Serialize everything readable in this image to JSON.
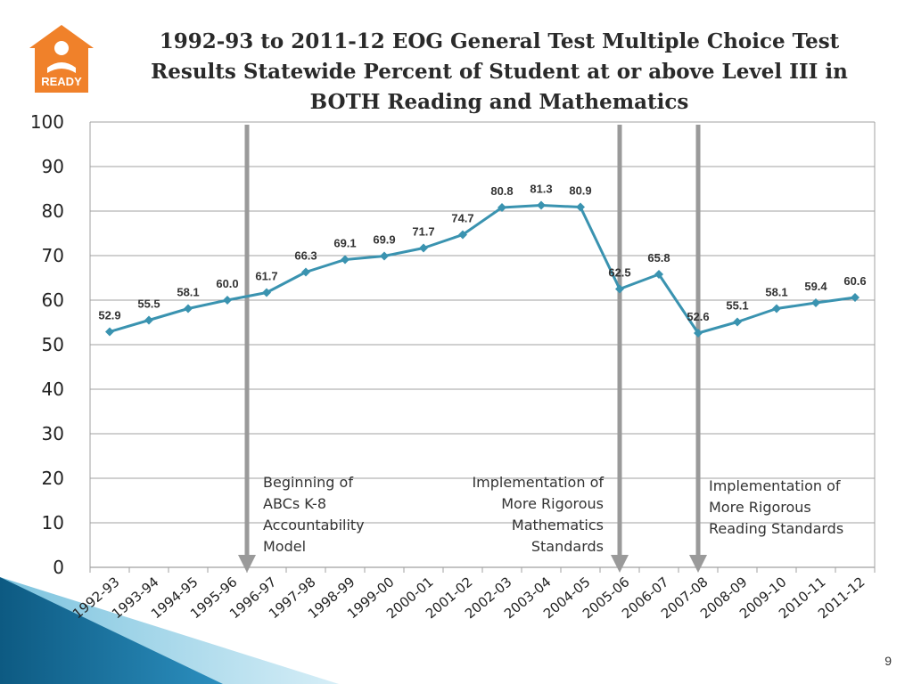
{
  "slide": {
    "title_lines": [
      "1992-93 to 2011-12 EOG General Test Multiple Choice Test",
      "Results Statewide Percent of Student at or above Level III in",
      "BOTH Reading and Mathematics"
    ],
    "logo_text": "READY",
    "page_number": "9",
    "colors": {
      "line": "#3a93b0",
      "marker": "#3a93b0",
      "grid": "#a0a0a0",
      "divider": "#9a9a9a",
      "logo": "#f0812a",
      "corner_dark": "#13628a",
      "corner_light": "#5fb6d6"
    }
  },
  "annotations": [
    {
      "lines": [
        "Beginning of",
        "ABCs K-8",
        "Accountability",
        "Model"
      ],
      "align": "left",
      "after_category": "1995-96"
    },
    {
      "lines": [
        "Implementation of",
        "More Rigorous",
        "Mathematics",
        "Standards"
      ],
      "align": "right",
      "before_category": "2005-06"
    },
    {
      "lines": [
        "Implementation of",
        "More Rigorous",
        "Reading Standards"
      ],
      "align": "left",
      "after_category": "2007-08"
    }
  ],
  "chart_data": {
    "type": "line",
    "title": "1992-93 to 2011-12 EOG General Test Multiple Choice Test Results Statewide Percent of Student at or above Level III in BOTH Reading and Mathematics",
    "xlabel": "",
    "ylabel": "",
    "ylim": [
      0,
      100
    ],
    "yticks": [
      0,
      10,
      20,
      30,
      40,
      50,
      60,
      70,
      80,
      90,
      100
    ],
    "grid": true,
    "legend": "none",
    "categories": [
      "1992-93",
      "1993-94",
      "1994-95",
      "1995-96",
      "1996-97",
      "1997-98",
      "1998-99",
      "1999-00",
      "2000-01",
      "2001-02",
      "2002-03",
      "2003-04",
      "2004-05",
      "2005-06",
      "2006-07",
      "2007-08",
      "2008-09",
      "2009-10",
      "2010-11",
      "2011-12"
    ],
    "series": [
      {
        "values": [
          52.9,
          55.5,
          58.1,
          60.0,
          61.7,
          66.3,
          69.1,
          69.9,
          71.7,
          74.7,
          80.8,
          81.3,
          80.9,
          62.5,
          65.8,
          52.6,
          55.1,
          58.1,
          59.4,
          60.6
        ],
        "labels": [
          "52.9",
          "55.5",
          "58.1",
          "60.0",
          "61.7",
          "66.3",
          "69.1",
          "69.9",
          "71.7",
          "74.7",
          "80.8",
          "81.3",
          "80.9",
          "62.5",
          "65.8",
          "52.6",
          "55.1",
          "58.1",
          "59.4",
          "60.6"
        ]
      }
    ],
    "divider_lines": [
      {
        "between": [
          "1995-96",
          "1996-97"
        ]
      },
      {
        "at": "2005-06"
      },
      {
        "at": "2007-08"
      }
    ]
  }
}
